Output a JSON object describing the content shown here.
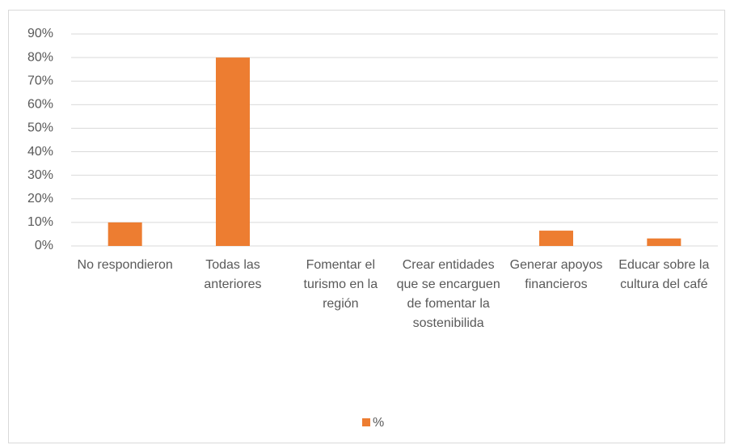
{
  "chart_data": {
    "type": "bar",
    "categories": [
      "No respondieron",
      "Todas las anteriores",
      "Fomentar el turismo en la región",
      "Crear entidades que se encarguen de fomentar la sostenibilida",
      "Generar apoyos financieros",
      "Educar sobre la cultura del café"
    ],
    "series": [
      {
        "name": "%",
        "color": "#ed7d31",
        "values": [
          10,
          80,
          0,
          0,
          6.5,
          3.2
        ]
      }
    ],
    "ylim": [
      0,
      90
    ],
    "yticks": [
      {
        "value": 0,
        "label": "0%"
      },
      {
        "value": 10,
        "label": "10%"
      },
      {
        "value": 20,
        "label": "20%"
      },
      {
        "value": 30,
        "label": "30%"
      },
      {
        "value": 40,
        "label": "40%"
      },
      {
        "value": 50,
        "label": "50%"
      },
      {
        "value": 60,
        "label": "60%"
      },
      {
        "value": 70,
        "label": "70%"
      },
      {
        "value": 80,
        "label": "80%"
      },
      {
        "value": 90,
        "label": "90%"
      }
    ],
    "grid": true,
    "legend": "bottom"
  }
}
